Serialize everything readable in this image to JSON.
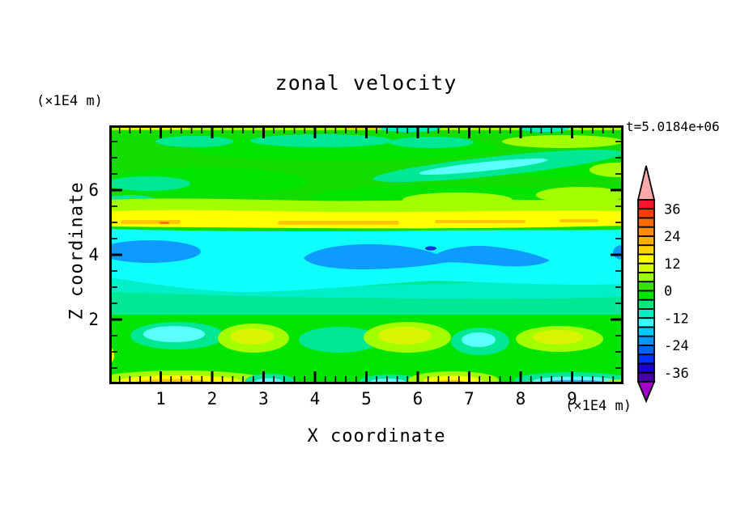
{
  "chart_data": {
    "type": "heatmap",
    "subtype": "filled_contour",
    "title": "zonal velocity",
    "annotation": "t=5.0184e+06",
    "xlabel": "X coordinate",
    "x_unit": "(×1E4 m)",
    "ylabel": "Z coordinate",
    "y_unit": "(×1E4 m)",
    "xlim": [
      0,
      10
    ],
    "ylim": [
      0,
      8
    ],
    "x_major_ticks": [
      1,
      2,
      3,
      4,
      5,
      6,
      7,
      8,
      9
    ],
    "x_tick_labels": [
      "1",
      "2",
      "3",
      "4",
      "5",
      "6",
      "7",
      "8",
      "9"
    ],
    "x_minor_step": 0.2,
    "y_major_ticks": [
      2,
      4,
      6
    ],
    "y_tick_labels": [
      "2",
      "4",
      "6"
    ],
    "y_minor_step": 0.5,
    "grid": false,
    "legend_position": "right-colorbar",
    "colorbar": {
      "labels": [
        "36",
        "24",
        "12",
        "0",
        "-12",
        "-24",
        "-36"
      ],
      "label_values": [
        36,
        24,
        12,
        0,
        -12,
        -24,
        -36
      ],
      "segment_step": 4,
      "range": [
        -40,
        40
      ],
      "over_color": "#FFAAAA",
      "under_color": "#A000C8",
      "segments_top_to_bottom": [
        "#F9142D",
        "#FB3D00",
        "#FC6A00",
        "#FE8D00",
        "#FFAE00",
        "#FFD300",
        "#FFFF00",
        "#D2FB00",
        "#9CFF00",
        "#37E100",
        "#00E400",
        "#00E77D",
        "#00ECC3",
        "#33FFFF",
        "#00C8FF",
        "#0096FF",
        "#0064FF",
        "#0032FF",
        "#1900CD",
        "#4600A5"
      ]
    },
    "tones": {
      "green": "#12DC00",
      "green_bright": "#00E400",
      "spring": "#00E894",
      "aqua": "#00EFC8",
      "cyan": "#0FFFFF",
      "cyan_light": "#5CFFFF",
      "blue": "#0D9BFF",
      "blue_dark": "#1432DC",
      "blue_light": "#37A0FF",
      "chartreuse": "#A3FF00",
      "yellow_green": "#D8F400",
      "yellow": "#FFFF00",
      "gold": "#FFC800",
      "orange": "#FF7800"
    },
    "field_features": [
      {
        "feature": "eastward jet band (yellow/orange)",
        "z_range": [
          4.85,
          5.4
        ],
        "x_range": [
          0,
          10
        ],
        "approx_value": "12 to 24"
      },
      {
        "feature": "westward layer (cyan)",
        "z_range": [
          3.0,
          4.75
        ],
        "x_range": [
          0,
          10
        ],
        "approx_value": "-16 to -12"
      },
      {
        "feature": "westward jet cores (blue blobs)",
        "z_center": 4.1,
        "x_ranges": [
          [
            0,
            1.7
          ],
          [
            3.8,
            8.6
          ],
          [
            9.8,
            10
          ]
        ],
        "approx_value": "-24 to -20"
      },
      {
        "feature": "strongest westward spot (dark blue)",
        "x": 6.25,
        "z": 4.2,
        "approx_value": "-36 to -28"
      },
      {
        "feature": "upper weak-flow region (greens with teal streaks)",
        "z_range": [
          5.6,
          8.0
        ],
        "approx_value": "-8 to 8"
      },
      {
        "feature": "top-edge chartreuse/yellow strip",
        "z_range": [
          7.8,
          8.0
        ],
        "approx_value": "8 to 20"
      },
      {
        "feature": "lower alternating cells (cyan and yellow-green blobs)",
        "z_range": [
          0.8,
          2.0
        ],
        "approx_value": "-12 to 12"
      },
      {
        "feature": "bottom-edge warm patches",
        "z_range": [
          0,
          0.5
        ],
        "x_ranges": [
          [
            0.2,
            2.6
          ],
          [
            6.0,
            7.4
          ]
        ],
        "approx_value": "12 to 24"
      },
      {
        "feature": "bottom-edge cold streak",
        "z_range": [
          0,
          0.4
        ],
        "x_ranges": [
          [
            8.0,
            9.7
          ]
        ],
        "approx_value": "-24 to -12"
      }
    ]
  }
}
